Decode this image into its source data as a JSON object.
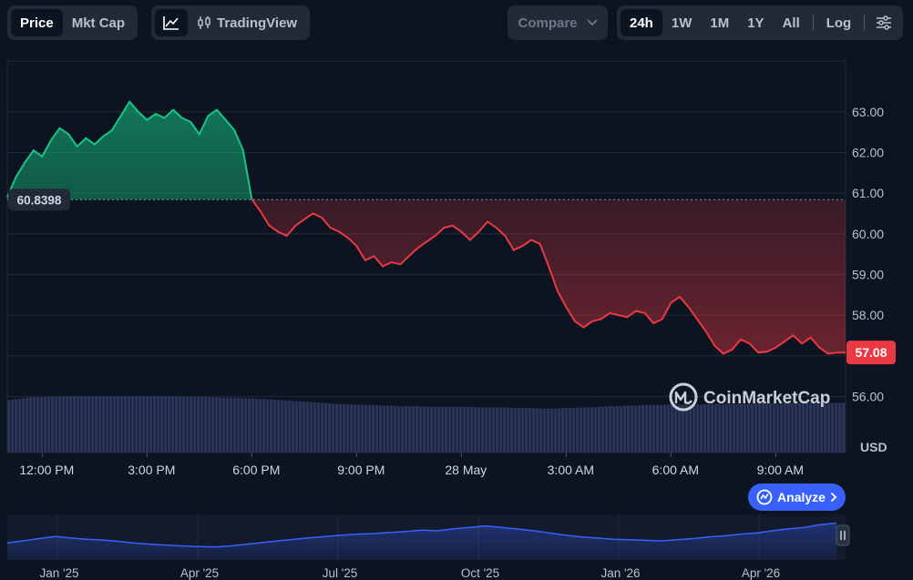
{
  "toolbar": {
    "metric_tabs": [
      {
        "label": "Price",
        "active": true
      },
      {
        "label": "Mkt Cap",
        "active": false
      }
    ],
    "chart_type": {
      "line_icon": "line-chart-icon",
      "candle_icon": "candlestick-icon",
      "tradingview_label": "TradingView"
    },
    "compare": {
      "label": "Compare",
      "icon": "chevron-down-icon"
    },
    "ranges": [
      {
        "label": "24h",
        "active": true
      },
      {
        "label": "1W",
        "active": false
      },
      {
        "label": "1M",
        "active": false
      },
      {
        "label": "1Y",
        "active": false
      },
      {
        "label": "All",
        "active": false
      }
    ],
    "log_label": "Log",
    "settings_icon": "sliders-icon"
  },
  "chart_data": {
    "type": "area",
    "y_axis": {
      "ticks": [
        56,
        57,
        58,
        59,
        60,
        61,
        62,
        63
      ],
      "tick_labels": [
        "56.00",
        "57.00",
        "58.00",
        "59.00",
        "60.00",
        "61.00",
        "62.00",
        "63.00"
      ],
      "unit_label": "USD",
      "ylim": [
        54.62,
        64.25
      ],
      "side": "right"
    },
    "x_axis": {
      "tick_labels": [
        "12:00 PM",
        "3:00 PM",
        "6:00 PM",
        "9:00 PM",
        "28 May",
        "3:00 AM",
        "6:00 AM",
        "9:00 AM"
      ],
      "tick_positions_hours": [
        1.0,
        4.0,
        7.0,
        10.0,
        13.0,
        16.0,
        19.0,
        22.0
      ],
      "xlim_hours": [
        0,
        24
      ]
    },
    "reference_price": 60.8398,
    "reference_label": "60.8398",
    "current_price": 57.08,
    "current_label": "57.08",
    "colors": {
      "up": "#16c784",
      "down": "#ea3943",
      "reference_line": "#8a94a6",
      "grid": "#222a37",
      "volume": "#2a3456"
    },
    "series": [
      {
        "x_hours": [
          0.0,
          0.25,
          0.5,
          0.75,
          1.0,
          1.25,
          1.5,
          1.75,
          2.0,
          2.25,
          2.5,
          2.75,
          3.0,
          3.25,
          3.5,
          3.75,
          4.0,
          4.25,
          4.5,
          4.75,
          5.0,
          5.25,
          5.5,
          5.75,
          6.0,
          6.25,
          6.5,
          6.75,
          7.0,
          7.25,
          7.5,
          7.75,
          8.0,
          8.25,
          8.5,
          8.75,
          9.0,
          9.25,
          9.5,
          9.75,
          10.0,
          10.25,
          10.5,
          10.75,
          11.0,
          11.25,
          11.5,
          11.75,
          12.0,
          12.25,
          12.5,
          12.75,
          13.0,
          13.25,
          13.5,
          13.75,
          14.0,
          14.25,
          14.5,
          14.75,
          15.0,
          15.25,
          15.5,
          15.75,
          16.0,
          16.25,
          16.5,
          16.75,
          17.0,
          17.25,
          17.5,
          17.75,
          18.0,
          18.25,
          18.5,
          18.75,
          19.0,
          19.25,
          19.5,
          19.75,
          20.0,
          20.25,
          20.5,
          20.75,
          21.0,
          21.25,
          21.5,
          21.75,
          22.0,
          22.25,
          22.5,
          22.75,
          23.0,
          23.25,
          23.5,
          23.75,
          24.0
        ],
        "y_price": [
          60.9,
          61.4,
          61.75,
          62.05,
          61.9,
          62.3,
          62.6,
          62.45,
          62.15,
          62.35,
          62.2,
          62.4,
          62.55,
          62.9,
          63.25,
          63.0,
          62.8,
          62.95,
          62.85,
          63.05,
          62.85,
          62.75,
          62.45,
          62.9,
          63.05,
          62.8,
          62.55,
          62.05,
          60.85,
          60.55,
          60.2,
          60.05,
          59.95,
          60.2,
          60.35,
          60.5,
          60.4,
          60.15,
          60.05,
          59.9,
          59.7,
          59.35,
          59.45,
          59.2,
          59.3,
          59.25,
          59.45,
          59.65,
          59.8,
          59.95,
          60.15,
          60.2,
          60.05,
          59.85,
          60.05,
          60.3,
          60.15,
          59.95,
          59.6,
          59.7,
          59.85,
          59.75,
          59.2,
          58.6,
          58.2,
          57.85,
          57.7,
          57.85,
          57.9,
          58.05,
          58.0,
          57.95,
          58.1,
          58.05,
          57.8,
          57.9,
          58.3,
          58.45,
          58.2,
          57.9,
          57.6,
          57.25,
          57.05,
          57.15,
          57.4,
          57.3,
          57.08,
          57.1,
          57.2,
          57.35,
          57.5,
          57.3,
          57.45,
          57.2,
          57.05,
          57.08,
          57.08
        ],
        "volume_rel": [
          0.93,
          0.95,
          0.97,
          0.98,
          0.98,
          0.99,
          0.99,
          1.0,
          1.0,
          1.0,
          1.0,
          1.0,
          1.0,
          1.0,
          1.0,
          1.0,
          1.0,
          1.0,
          1.0,
          1.0,
          0.99,
          0.99,
          0.99,
          0.98,
          0.98,
          0.97,
          0.97,
          0.96,
          0.96,
          0.95,
          0.94,
          0.93,
          0.92,
          0.91,
          0.9,
          0.89,
          0.88,
          0.87,
          0.86,
          0.85,
          0.85,
          0.84,
          0.84,
          0.83,
          0.83,
          0.82,
          0.82,
          0.82,
          0.81,
          0.81,
          0.81,
          0.81,
          0.81,
          0.81,
          0.8,
          0.8,
          0.8,
          0.8,
          0.79,
          0.79,
          0.79,
          0.78,
          0.78,
          0.78,
          0.79,
          0.79,
          0.8,
          0.8,
          0.81,
          0.82,
          0.82,
          0.83,
          0.83,
          0.84,
          0.84,
          0.84,
          0.85,
          0.85,
          0.85,
          0.85,
          0.85,
          0.86,
          0.86,
          0.86,
          0.86,
          0.86,
          0.87,
          0.87,
          0.87,
          0.87,
          0.87,
          0.88,
          0.88,
          0.88,
          0.88,
          0.88,
          0.88
        ]
      }
    ]
  },
  "watermark": {
    "label": "CoinMarketCap",
    "icon": "coinmarketcap-logo-icon"
  },
  "analyze_button": {
    "label": "Analyze",
    "icon": "ai-sparkle-icon",
    "arrow_icon": "chevron-right-icon"
  },
  "navigator": {
    "x_labels": [
      "Jan '25",
      "Apr '25",
      "Jul '25",
      "Oct '25",
      "Jan '26",
      "Apr '26"
    ],
    "values": [
      0.35,
      0.42,
      0.5,
      0.58,
      0.52,
      0.48,
      0.45,
      0.4,
      0.34,
      0.3,
      0.27,
      0.24,
      0.22,
      0.2,
      0.24,
      0.3,
      0.36,
      0.42,
      0.48,
      0.53,
      0.58,
      0.62,
      0.66,
      0.68,
      0.72,
      0.75,
      0.8,
      0.78,
      0.85,
      0.9,
      0.95,
      0.9,
      0.84,
      0.78,
      0.7,
      0.62,
      0.56,
      0.52,
      0.48,
      0.46,
      0.44,
      0.42,
      0.46,
      0.5,
      0.56,
      0.6,
      0.66,
      0.7,
      0.78,
      0.85,
      0.9,
      1.0,
      1.05
    ],
    "handle_icon": "pause-handle-icon"
  }
}
